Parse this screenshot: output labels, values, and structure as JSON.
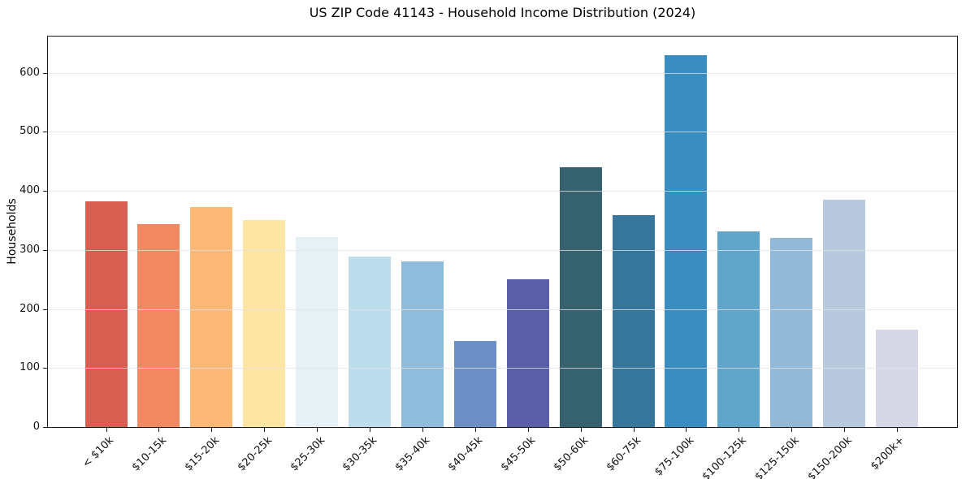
{
  "chart_data": {
    "type": "bar",
    "title": "US ZIP Code 41143 - Household Income Distribution (2024)",
    "xlabel": "",
    "ylabel": "Households",
    "categories": [
      "< $10k",
      "$10-15k",
      "$15-20k",
      "$20-25k",
      "$25-30k",
      "$30-35k",
      "$35-40k",
      "$40-45k",
      "$45-50k",
      "$50-60k",
      "$60-75k",
      "$75-100k",
      "$100-125k",
      "$125-150k",
      "$150-200k",
      "$200k+"
    ],
    "values": [
      382,
      344,
      373,
      351,
      322,
      289,
      281,
      146,
      250,
      440,
      359,
      630,
      331,
      321,
      385,
      165
    ],
    "bar_colors": [
      "#d65f52",
      "#f18a62",
      "#fbb877",
      "#fde5a3",
      "#e6f1f6",
      "#bddcec",
      "#90bcdc",
      "#6c90c5",
      "#5a5ea8",
      "#36616f",
      "#36769a",
      "#398dc1",
      "#60a6ca",
      "#93b9d9",
      "#b7c8df",
      "#d7d8e7"
    ],
    "ylim": [
      0,
      661.5
    ],
    "yticks": [
      0,
      100,
      200,
      300,
      400,
      500,
      600
    ],
    "grid": "horizontal",
    "legend": "none",
    "x_tick_rotation_deg": 45
  },
  "style": {
    "background": "#ffffff",
    "grid_color": "#e3e3e3",
    "spine_color": "#1a1a1a",
    "text_color": "#111111"
  }
}
